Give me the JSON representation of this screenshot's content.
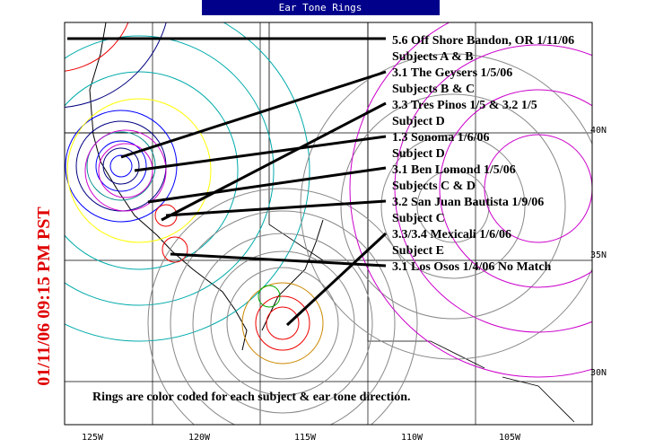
{
  "header": {
    "title": "Ear Tone Rings"
  },
  "timestamp": "01/11/06 09:15 PM PST",
  "map": {
    "longitude_labels": [
      "125W",
      "120W",
      "115W",
      "110W",
      "105W"
    ],
    "latitude_labels": [
      "40N",
      "35N",
      "30N"
    ],
    "annotations": [
      "5.6 Off Shore Bandon, OR 1/11/06",
      "Subjects A & B",
      "3.1 The Geysers 1/5/06",
      "Subjects B & C",
      "3.3 Tres Pinos 1/5 & 3.2 1/5",
      "Subject D",
      "1.3 Sonoma 1/6/06",
      "Subject D",
      "3.1 Ben Lomond 1/5/06",
      "Subjects C & D",
      "3.2 San Juan Bautista 1/9/06",
      "Subject C",
      "3.3/3.4 Mexicali 1/6/06",
      "Subject E",
      "3.1 Los Osos 1/4/06 No Match"
    ],
    "note": "Rings are color coded for each subject & ear tone direction."
  }
}
